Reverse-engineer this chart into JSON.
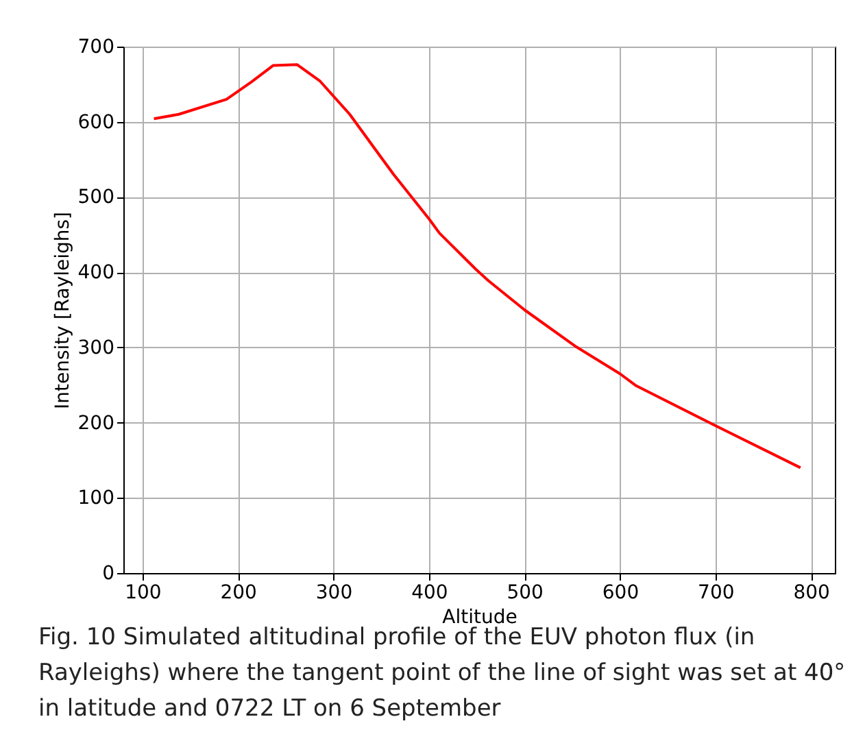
{
  "chart_data": {
    "type": "line",
    "xlabel": "Altitude",
    "ylabel": "Intensity [Rayleighs]",
    "annotations": [
      "Fig. 10  Simulated altitudinal profile of the EUV photon flux (in Rayleighs) where the tangent point of the line of sight was set at 40° in latitude and 0722 LT on 6 September"
    ],
    "x": [
      112,
      138,
      188,
      214,
      237,
      262,
      286,
      317,
      348,
      363,
      400,
      411,
      449,
      462,
      500,
      554,
      600,
      617,
      700,
      789
    ],
    "series": [
      {
        "color": "#ff0000",
        "values": [
          604,
          610,
          630,
          653,
          675,
          676,
          654,
          610,
          556,
          530,
          471,
          452,
          404,
          389,
          350,
          301,
          265,
          249,
          196,
          140
        ]
      }
    ],
    "xlim": [
      80,
      825
    ],
    "xticks": [
      100,
      200,
      300,
      400,
      500,
      600,
      700,
      800
    ],
    "ylim": [
      0,
      700
    ],
    "yticks": [
      0,
      100,
      200,
      300,
      400,
      500,
      600,
      700
    ],
    "grid": true,
    "marker": "none",
    "line_style": "solid"
  }
}
